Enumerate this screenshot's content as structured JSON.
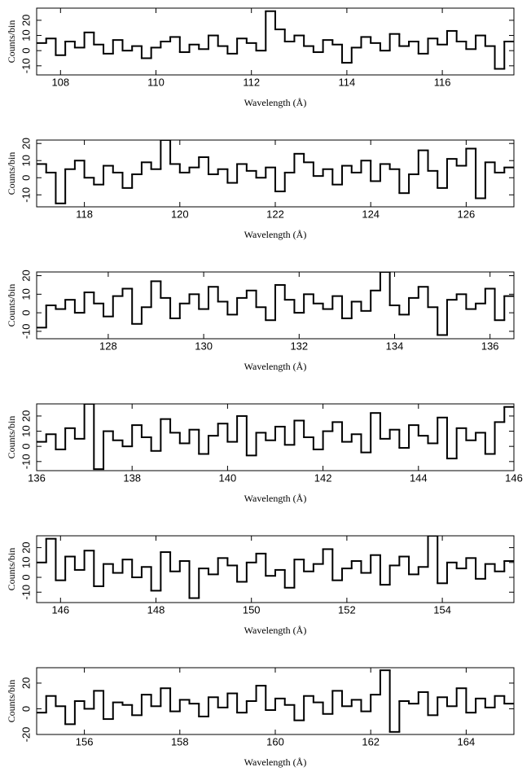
{
  "chart_data": [
    {
      "type": "step",
      "xlabel": "Wavelength (Å)",
      "ylabel": "Counts/bin",
      "color": "#000000",
      "xlim": [
        107.5,
        117.5
      ],
      "xticks": [
        108,
        110,
        112,
        114,
        116
      ],
      "ylim": [
        -16,
        28
      ],
      "yticks": [
        -10,
        0,
        10,
        20
      ],
      "x": [
        107.6,
        107.8,
        108.0,
        108.2,
        108.4,
        108.6,
        108.8,
        109.0,
        109.2,
        109.4,
        109.6,
        109.8,
        110.0,
        110.2,
        110.4,
        110.6,
        110.8,
        111.0,
        111.2,
        111.4,
        111.6,
        111.8,
        112.0,
        112.2,
        112.4,
        112.6,
        112.8,
        113.0,
        113.2,
        113.4,
        113.6,
        113.8,
        114.0,
        114.2,
        114.4,
        114.6,
        114.8,
        115.0,
        115.2,
        115.4,
        115.6,
        115.8,
        116.0,
        116.2,
        116.4,
        116.6,
        116.8,
        117.0,
        117.2,
        117.4
      ],
      "values": [
        5,
        8,
        -3,
        6,
        2,
        12,
        4,
        -2,
        7,
        0,
        3,
        -5,
        2,
        6,
        9,
        -1,
        4,
        1,
        10,
        3,
        -2,
        8,
        5,
        0,
        26,
        14,
        6,
        10,
        3,
        -1,
        7,
        4,
        -8,
        2,
        9,
        5,
        0,
        11,
        3,
        6,
        -2,
        8,
        4,
        13,
        6,
        1,
        10,
        3,
        -12,
        6
      ]
    },
    {
      "type": "step",
      "xlabel": "Wavelength (Å)",
      "ylabel": "Counts/bin",
      "color": "#000000",
      "xlim": [
        117,
        127
      ],
      "xticks": [
        118,
        120,
        122,
        124,
        126
      ],
      "ylim": [
        -17,
        22
      ],
      "yticks": [
        -10,
        0,
        10,
        20
      ],
      "x": [
        117.1,
        117.3,
        117.5,
        117.7,
        117.9,
        118.1,
        118.3,
        118.5,
        118.7,
        118.9,
        119.1,
        119.3,
        119.5,
        119.7,
        119.9,
        120.1,
        120.3,
        120.5,
        120.7,
        120.9,
        121.1,
        121.3,
        121.5,
        121.7,
        121.9,
        122.1,
        122.3,
        122.5,
        122.7,
        122.9,
        123.1,
        123.3,
        123.5,
        123.7,
        123.9,
        124.1,
        124.3,
        124.5,
        124.7,
        124.9,
        125.1,
        125.3,
        125.5,
        125.7,
        125.9,
        126.1,
        126.3,
        126.5,
        126.7,
        126.9
      ],
      "values": [
        8,
        3,
        -15,
        5,
        10,
        0,
        -4,
        7,
        3,
        -6,
        2,
        9,
        5,
        22,
        8,
        3,
        6,
        12,
        2,
        5,
        -3,
        8,
        4,
        0,
        6,
        -8,
        3,
        14,
        9,
        1,
        5,
        -4,
        7,
        3,
        10,
        -2,
        8,
        5,
        -9,
        2,
        16,
        4,
        -6,
        11,
        7,
        17,
        -12,
        9,
        3,
        6
      ]
    },
    {
      "type": "step",
      "xlabel": "Wavelength (Å)",
      "ylabel": "Counts/bin",
      "color": "#000000",
      "xlim": [
        126.5,
        136.5
      ],
      "xticks": [
        128,
        130,
        132,
        134,
        136
      ],
      "ylim": [
        -14,
        22
      ],
      "yticks": [
        -10,
        0,
        10,
        20
      ],
      "x": [
        126.6,
        126.8,
        127.0,
        127.2,
        127.4,
        127.6,
        127.8,
        128.0,
        128.2,
        128.4,
        128.6,
        128.8,
        129.0,
        129.2,
        129.4,
        129.6,
        129.8,
        130.0,
        130.2,
        130.4,
        130.6,
        130.8,
        131.0,
        131.2,
        131.4,
        131.6,
        131.8,
        132.0,
        132.2,
        132.4,
        132.6,
        132.8,
        133.0,
        133.2,
        133.4,
        133.6,
        133.8,
        134.0,
        134.2,
        134.4,
        134.6,
        134.8,
        135.0,
        135.2,
        135.4,
        135.6,
        135.8,
        136.0,
        136.2,
        136.4
      ],
      "values": [
        -8,
        4,
        2,
        7,
        0,
        11,
        5,
        -2,
        9,
        13,
        -6,
        3,
        17,
        8,
        -3,
        5,
        10,
        2,
        14,
        6,
        -1,
        8,
        12,
        3,
        -4,
        15,
        7,
        0,
        10,
        5,
        2,
        9,
        -3,
        6,
        1,
        12,
        22,
        4,
        -1,
        8,
        14,
        3,
        -12,
        7,
        10,
        2,
        5,
        13,
        -4,
        9
      ]
    },
    {
      "type": "step",
      "xlabel": "Wavelength (Å)",
      "ylabel": "Counts/bin",
      "color": "#000000",
      "xlim": [
        136,
        146
      ],
      "xticks": [
        136,
        138,
        140,
        142,
        144,
        146
      ],
      "ylim": [
        -16,
        28
      ],
      "yticks": [
        -10,
        0,
        10,
        20
      ],
      "x": [
        136.1,
        136.3,
        136.5,
        136.7,
        136.9,
        137.1,
        137.3,
        137.5,
        137.7,
        137.9,
        138.1,
        138.3,
        138.5,
        138.7,
        138.9,
        139.1,
        139.3,
        139.5,
        139.7,
        139.9,
        140.1,
        140.3,
        140.5,
        140.7,
        140.9,
        141.1,
        141.3,
        141.5,
        141.7,
        141.9,
        142.1,
        142.3,
        142.5,
        142.7,
        142.9,
        143.1,
        143.3,
        143.5,
        143.7,
        143.9,
        144.1,
        144.3,
        144.5,
        144.7,
        144.9,
        145.1,
        145.3,
        145.5,
        145.7,
        145.9
      ],
      "values": [
        3,
        8,
        -2,
        12,
        5,
        28,
        -15,
        10,
        4,
        0,
        14,
        6,
        -3,
        18,
        9,
        2,
        11,
        -5,
        7,
        15,
        3,
        20,
        -6,
        9,
        4,
        13,
        1,
        17,
        6,
        -2,
        10,
        16,
        3,
        8,
        -4,
        22,
        5,
        11,
        -1,
        14,
        7,
        2,
        19,
        -8,
        12,
        4,
        9,
        -5,
        16,
        26
      ]
    },
    {
      "type": "step",
      "xlabel": "Wavelength (Å)",
      "ylabel": "Counts/bin",
      "color": "#000000",
      "xlim": [
        145.5,
        155.5
      ],
      "xticks": [
        146,
        148,
        150,
        152,
        154
      ],
      "ylim": [
        -17,
        28
      ],
      "yticks": [
        -10,
        0,
        10,
        20
      ],
      "x": [
        145.6,
        145.8,
        146.0,
        146.2,
        146.4,
        146.6,
        146.8,
        147.0,
        147.2,
        147.4,
        147.6,
        147.8,
        148.0,
        148.2,
        148.4,
        148.6,
        148.8,
        149.0,
        149.2,
        149.4,
        149.6,
        149.8,
        150.0,
        150.2,
        150.4,
        150.6,
        150.8,
        151.0,
        151.2,
        151.4,
        151.6,
        151.8,
        152.0,
        152.2,
        152.4,
        152.6,
        152.8,
        153.0,
        153.2,
        153.4,
        153.6,
        153.8,
        154.0,
        154.2,
        154.4,
        154.6,
        154.8,
        155.0,
        155.2,
        155.4
      ],
      "values": [
        10,
        26,
        -2,
        14,
        5,
        18,
        -6,
        9,
        3,
        12,
        0,
        7,
        -9,
        17,
        4,
        11,
        -14,
        6,
        2,
        13,
        8,
        -3,
        10,
        16,
        1,
        5,
        -7,
        12,
        4,
        9,
        19,
        -2,
        6,
        11,
        3,
        15,
        -5,
        8,
        14,
        2,
        7,
        28,
        -4,
        10,
        6,
        13,
        -1,
        9,
        4,
        11
      ]
    },
    {
      "type": "step",
      "xlabel": "Wavelength (Å)",
      "ylabel": "Counts/bin",
      "color": "#000000",
      "xlim": [
        155,
        165
      ],
      "xticks": [
        156,
        158,
        160,
        162,
        164
      ],
      "ylim": [
        -20,
        32
      ],
      "yticks": [
        -20,
        0,
        20
      ],
      "x": [
        155.1,
        155.3,
        155.5,
        155.7,
        155.9,
        156.1,
        156.3,
        156.5,
        156.7,
        156.9,
        157.1,
        157.3,
        157.5,
        157.7,
        157.9,
        158.1,
        158.3,
        158.5,
        158.7,
        158.9,
        159.1,
        159.3,
        159.5,
        159.7,
        159.9,
        160.1,
        160.3,
        160.5,
        160.7,
        160.9,
        161.1,
        161.3,
        161.5,
        161.7,
        161.9,
        162.1,
        162.3,
        162.5,
        162.7,
        162.9,
        163.1,
        163.3,
        163.5,
        163.7,
        163.9,
        164.1,
        164.3,
        164.5,
        164.7,
        164.9
      ],
      "values": [
        -3,
        10,
        2,
        -12,
        6,
        0,
        14,
        -8,
        5,
        3,
        -5,
        11,
        2,
        16,
        -2,
        7,
        4,
        -6,
        9,
        1,
        12,
        -3,
        6,
        18,
        -1,
        8,
        3,
        -9,
        10,
        5,
        -4,
        14,
        2,
        7,
        -2,
        11,
        30,
        -18,
        6,
        4,
        13,
        -5,
        9,
        2,
        16,
        -3,
        8,
        1,
        10,
        4
      ]
    }
  ]
}
